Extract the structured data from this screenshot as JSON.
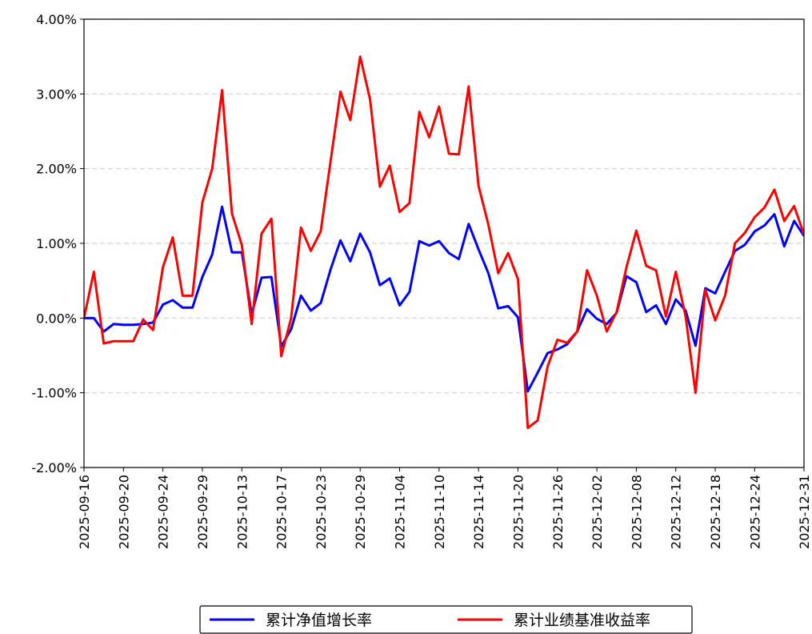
{
  "chart_data": {
    "type": "line",
    "categories": [
      "2025-09-16",
      null,
      null,
      null,
      "2025-09-20",
      null,
      null,
      null,
      "2025-09-24",
      null,
      null,
      null,
      "2025-09-29",
      null,
      null,
      null,
      "2025-10-13",
      null,
      null,
      null,
      "2025-10-17",
      null,
      null,
      null,
      "2025-10-23",
      null,
      null,
      null,
      "2025-10-29",
      null,
      null,
      null,
      "2025-11-04",
      null,
      null,
      null,
      "2025-11-10",
      null,
      null,
      null,
      "2025-11-14",
      null,
      null,
      null,
      "2025-11-20",
      null,
      null,
      null,
      "2025-11-26",
      null,
      null,
      null,
      "2025-12-02",
      null,
      null,
      null,
      "2025-12-08",
      null,
      null,
      null,
      "2025-12-12",
      null,
      null,
      null,
      "2025-12-18",
      null,
      null,
      null,
      "2025-12-24",
      null,
      null,
      null,
      null,
      "2025-12-31"
    ],
    "series": [
      {
        "name": "累计净值增长率",
        "color": "#0000ff",
        "values": [
          0.0,
          0.0,
          -0.18,
          -0.08,
          -0.09,
          -0.09,
          -0.08,
          -0.06,
          0.18,
          0.24,
          0.14,
          0.14,
          0.55,
          0.85,
          1.49,
          0.88,
          0.88,
          0.05,
          0.54,
          0.55,
          -0.38,
          -0.15,
          0.3,
          0.1,
          0.2,
          0.65,
          1.04,
          0.76,
          1.13,
          0.88,
          0.44,
          0.53,
          0.17,
          0.35,
          1.03,
          0.97,
          1.03,
          0.87,
          0.79,
          1.26,
          0.92,
          0.6,
          0.13,
          0.16,
          0.01,
          -0.98,
          -0.73,
          -0.47,
          -0.42,
          -0.35,
          -0.18,
          0.12,
          -0.01,
          -0.08,
          0.07,
          0.56,
          0.48,
          0.08,
          0.17,
          -0.08,
          0.25,
          0.1,
          -0.37,
          0.4,
          0.33,
          0.62,
          0.9,
          0.98,
          1.16,
          1.24,
          1.39,
          0.96,
          1.3,
          1.1
        ]
      },
      {
        "name": "累计业绩基准收益率",
        "color": "#ff0000",
        "values": [
          0.0,
          0.62,
          -0.34,
          -0.31,
          -0.31,
          -0.31,
          -0.02,
          -0.16,
          0.68,
          1.08,
          0.3,
          0.3,
          1.55,
          2.0,
          3.05,
          1.4,
          0.98,
          -0.08,
          1.13,
          1.33,
          -0.51,
          0.0,
          1.21,
          0.9,
          1.16,
          2.1,
          3.03,
          2.65,
          3.5,
          2.93,
          1.76,
          2.04,
          1.42,
          1.54,
          2.76,
          2.42,
          2.83,
          2.2,
          2.19,
          3.1,
          1.77,
          1.25,
          0.6,
          0.87,
          0.52,
          -1.47,
          -1.37,
          -0.65,
          -0.29,
          -0.33,
          -0.18,
          0.64,
          0.3,
          -0.18,
          0.08,
          0.68,
          1.17,
          0.7,
          0.64,
          0.02,
          0.62,
          0.02,
          -1.0,
          0.38,
          -0.03,
          0.3,
          1.0,
          1.14,
          1.35,
          1.48,
          1.72,
          1.3,
          1.5,
          1.12
        ]
      }
    ],
    "ylim": [
      -2,
      4
    ],
    "yticks": [
      {
        "value": -2,
        "label": "-2.00%"
      },
      {
        "value": -1,
        "label": "-1.00%"
      },
      {
        "value": 0,
        "label": "0.00%"
      },
      {
        "value": 1,
        "label": "1.00%"
      },
      {
        "value": 2,
        "label": "2.00%"
      },
      {
        "value": 3,
        "label": "3.00%"
      },
      {
        "value": 4,
        "label": "4.00%"
      }
    ],
    "grid": true
  }
}
